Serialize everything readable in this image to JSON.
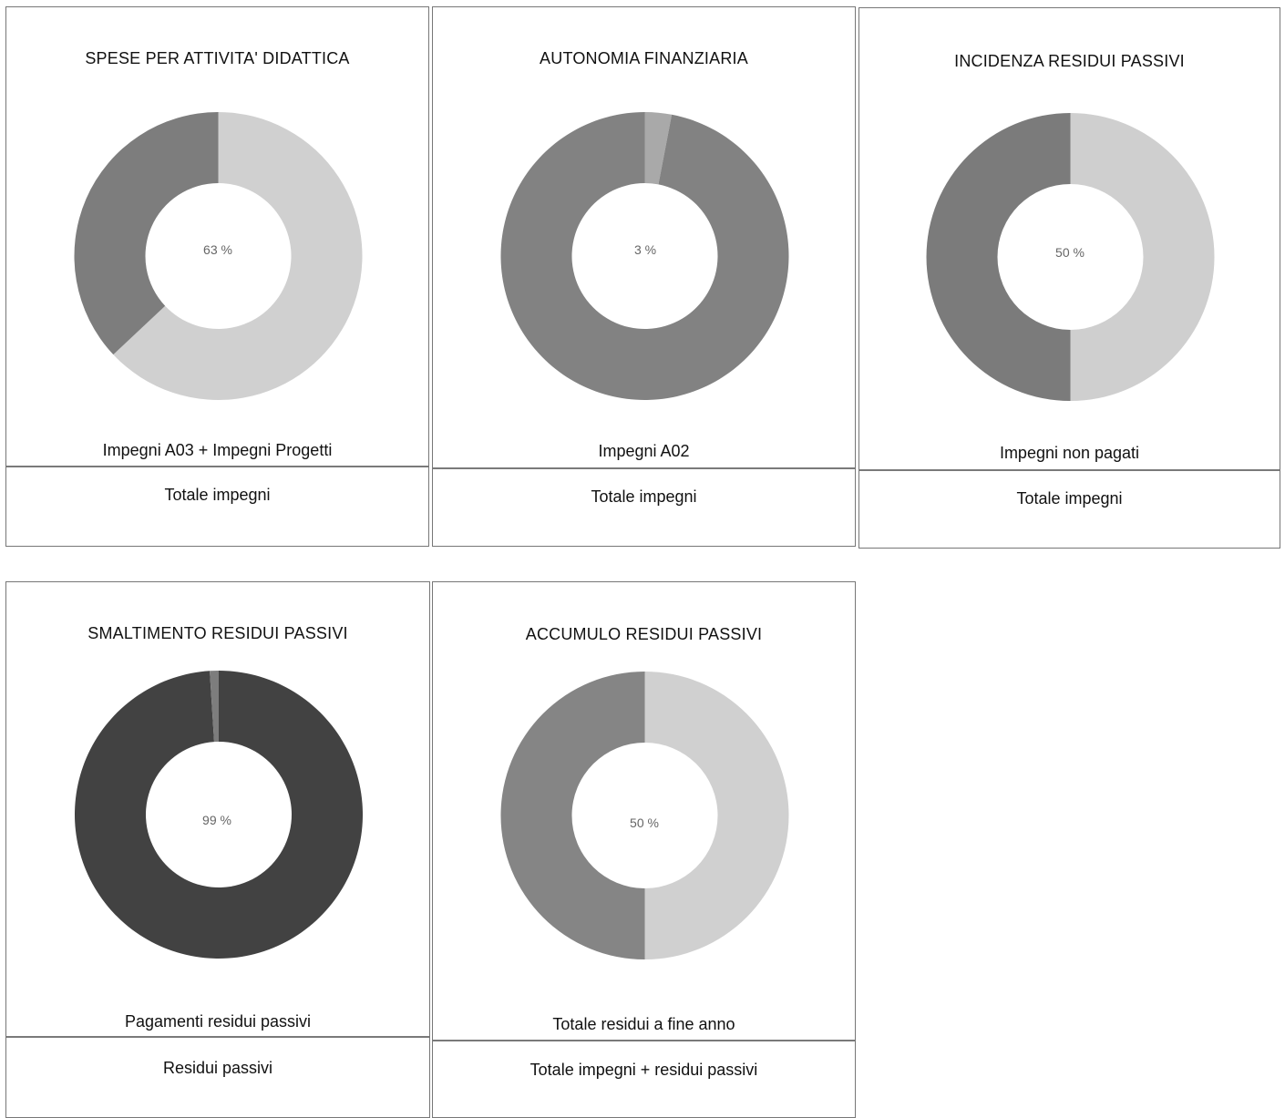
{
  "chart_data": [
    {
      "type": "pie",
      "title": "SPESE PER ATTIVITA' DIDATTICA",
      "center_label": "63 %",
      "value": 63,
      "numerator_label": "Impegni A03 + Impegni Progetti",
      "denominator_label": "Totale impegni",
      "colors": [
        "#d0d0d0",
        "#7d7d7d"
      ]
    },
    {
      "type": "pie",
      "title": "AUTONOMIA FINANZIARIA",
      "center_label": "3 %",
      "value": 3,
      "numerator_label": "Impegni A02",
      "denominator_label": "Totale impegni",
      "colors": [
        "#a9a9a9",
        "#828282"
      ]
    },
    {
      "type": "pie",
      "title": "INCIDENZA RESIDUI PASSIVI",
      "center_label": "50 %",
      "value": 50,
      "numerator_label": "Impegni non pagati",
      "denominator_label": "Totale impegni",
      "colors": [
        "#cfcfcf",
        "#7b7b7b"
      ]
    },
    {
      "type": "pie",
      "title": "SMALTIMENTO RESIDUI PASSIVI",
      "center_label": "99 %",
      "value": 99,
      "numerator_label": "Pagamenti residui passivi",
      "denominator_label": "Residui passivi",
      "colors": [
        "#424242",
        "#7d7d7d"
      ]
    },
    {
      "type": "pie",
      "title": "ACCUMULO RESIDUI PASSIVI",
      "center_label": "50 %",
      "value": 50,
      "numerator_label": "Totale residui a fine anno",
      "denominator_label": "Totale impegni + residui passivi",
      "colors": [
        "#d0d0d0",
        "#858585"
      ]
    }
  ]
}
